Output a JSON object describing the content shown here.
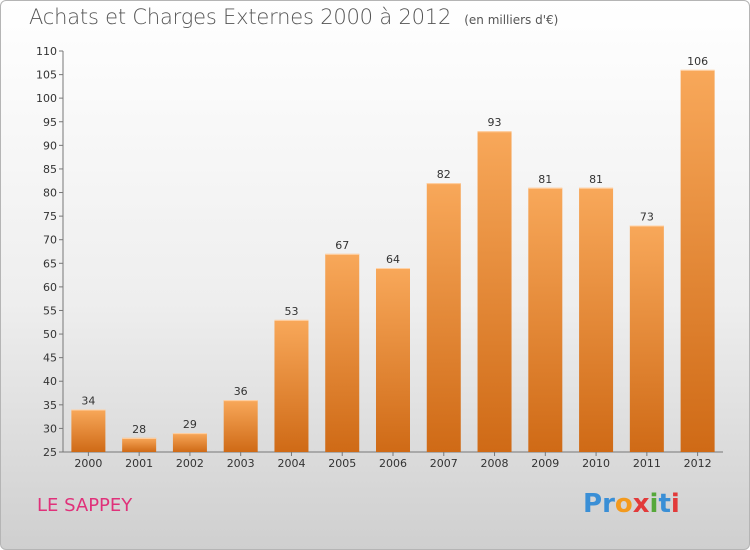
{
  "header": {
    "title": "Achats et Charges Externes 2000 à 2012",
    "unit": "(en milliers d'€)"
  },
  "footer": {
    "commune": "LE SAPPEY",
    "brand_letters": [
      {
        "char": "P",
        "color": "#3a8fd6"
      },
      {
        "char": "r",
        "color": "#3a8fd6"
      },
      {
        "char": "o",
        "color": "#f39a1e"
      },
      {
        "char": "x",
        "color": "#e23a3a"
      },
      {
        "char": "i",
        "color": "#56a83a"
      },
      {
        "char": "t",
        "color": "#3a8fd6"
      },
      {
        "char": "i",
        "color": "#e23a3a"
      }
    ]
  },
  "colors": {
    "bar_top": "#f8a85a",
    "bar_bottom": "#cf6a16",
    "commune_text": "#e0317a"
  },
  "chart_data": {
    "type": "bar",
    "title": "Achats et Charges Externes 2000 à 2012",
    "subtitle": "(en milliers d'€)",
    "categories": [
      "2000",
      "2001",
      "2002",
      "2003",
      "2004",
      "2005",
      "2006",
      "2007",
      "2008",
      "2009",
      "2010",
      "2011",
      "2012"
    ],
    "values": [
      34,
      28,
      29,
      36,
      53,
      67,
      64,
      82,
      93,
      81,
      81,
      73,
      106
    ],
    "ylim": [
      25,
      110
    ],
    "yticks": [
      25,
      30,
      35,
      40,
      45,
      50,
      55,
      60,
      65,
      70,
      75,
      80,
      85,
      90,
      95,
      100,
      105,
      110
    ],
    "xlabel": "",
    "ylabel": "",
    "grid": false,
    "data_labels": true
  }
}
